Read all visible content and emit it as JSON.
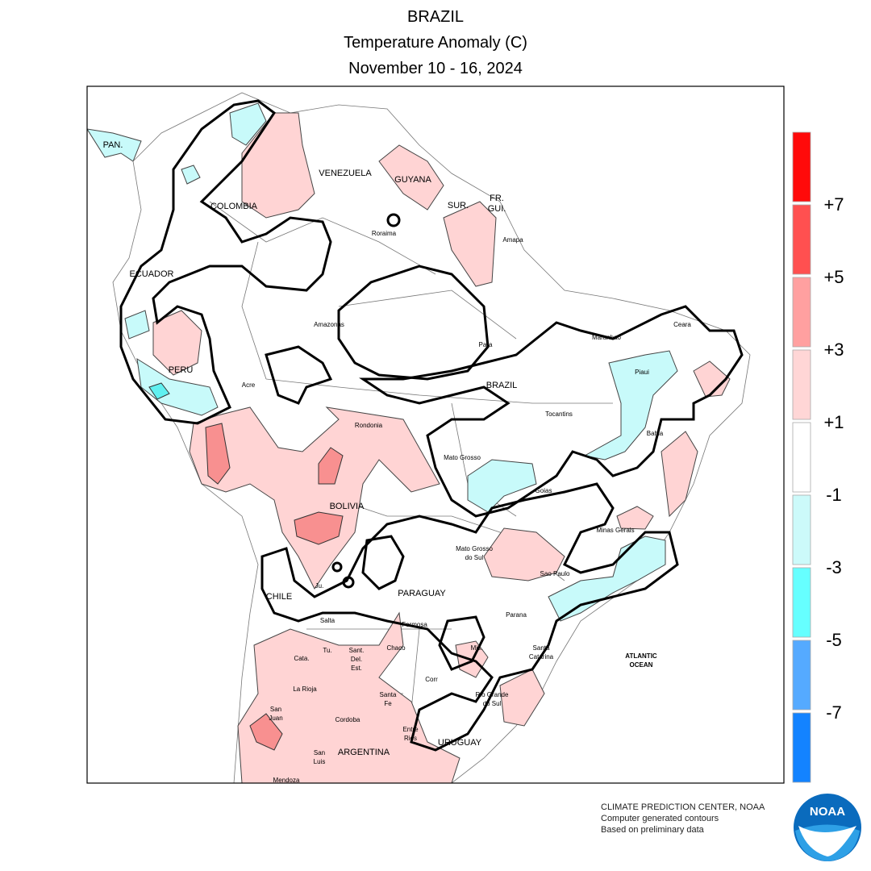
{
  "header": {
    "country": "BRAZIL",
    "title": "Temperature Anomaly (C)",
    "dates": "November 10 - 16, 2024"
  },
  "legend": {
    "labels": [
      "+7",
      "+5",
      "+3",
      "+1",
      "-1",
      "-3",
      "-5",
      "-7"
    ],
    "colors": [
      "#ff0a0a",
      "#ff5050",
      "#ffa0a0",
      "#ffd6d6",
      "#ffffff",
      "#ccfafa",
      "#66ffff",
      "#55aaff",
      "#1383ff"
    ]
  },
  "places": [
    "PAN.",
    "VENEZUELA",
    "GUYANA",
    "SUR.",
    "FR.\nGUI.",
    "COLOMBIA",
    "Roraima",
    "Amapa",
    "ECUADOR",
    "Amazonas",
    "Para",
    "Maranhao",
    "Ceara",
    "PERU",
    "Piaui",
    "BRAZIL",
    "Acre",
    "Tocantins",
    "Bahia",
    "Rondonia",
    "Mato Grosso",
    "Goias",
    "BOLIVIA",
    "Minas Gerais",
    "Mato Grosso\ndo Sul",
    "Sao Paulo",
    "Ju.",
    "CHILE",
    "PARAGUAY",
    "Salta",
    "Parana",
    "Formosa",
    "Tu.",
    "Sant.\nDel.\nEst.",
    "Chaco",
    "Cata.",
    "Mis.",
    "Santa\nCatarina",
    "ATLANTIC\nOCEAN",
    "La Rioja",
    "Corr",
    "Santa\nFe",
    "Rio Grande\ndo Sul",
    "San\nJuan",
    "Cordoba",
    "Entre\nRios",
    "URUGUAY",
    "San\nLuis",
    "ARGENTINA",
    "Mendoza"
  ],
  "footer": {
    "lines": [
      "CLIMATE PREDICTION CENTER, NOAA",
      "Computer generated contours",
      "Based on preliminary data"
    ],
    "logo": "NOAA"
  }
}
